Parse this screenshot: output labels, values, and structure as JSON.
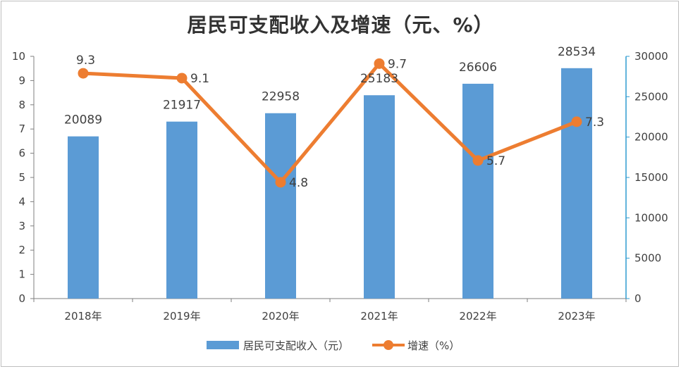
{
  "chart_data": {
    "type": "bar+line",
    "title": "居民可支配收入及增速（元、%）",
    "categories": [
      "2018年",
      "2019年",
      "2020年",
      "2021年",
      "2022年",
      "2023年"
    ],
    "series": [
      {
        "name": "居民可支配收入（元）",
        "type": "bar",
        "axis": "right",
        "color": "#5b9bd5",
        "values": [
          20089,
          21917,
          22958,
          25183,
          26606,
          28534
        ],
        "labels": [
          "20089",
          "21917",
          "22958",
          "25183",
          "26606",
          "28534"
        ]
      },
      {
        "name": "增速（%）",
        "type": "line",
        "axis": "left",
        "color": "#ed7d31",
        "values": [
          9.3,
          9.1,
          4.8,
          9.7,
          5.7,
          7.3
        ],
        "labels": [
          "9.3",
          "9.1",
          "4.8",
          "9.7",
          "5.7",
          "7.3"
        ]
      }
    ],
    "left_axis": {
      "ylim": [
        0,
        10
      ],
      "ticks": [
        "0",
        "1",
        "2",
        "3",
        "4",
        "5",
        "6",
        "7",
        "8",
        "9",
        "10"
      ]
    },
    "right_axis": {
      "ylim": [
        0,
        30000
      ],
      "ticks": [
        "0",
        "5000",
        "10000",
        "15000",
        "20000",
        "25000",
        "30000"
      ]
    },
    "grid": false,
    "legend_position": "bottom"
  }
}
